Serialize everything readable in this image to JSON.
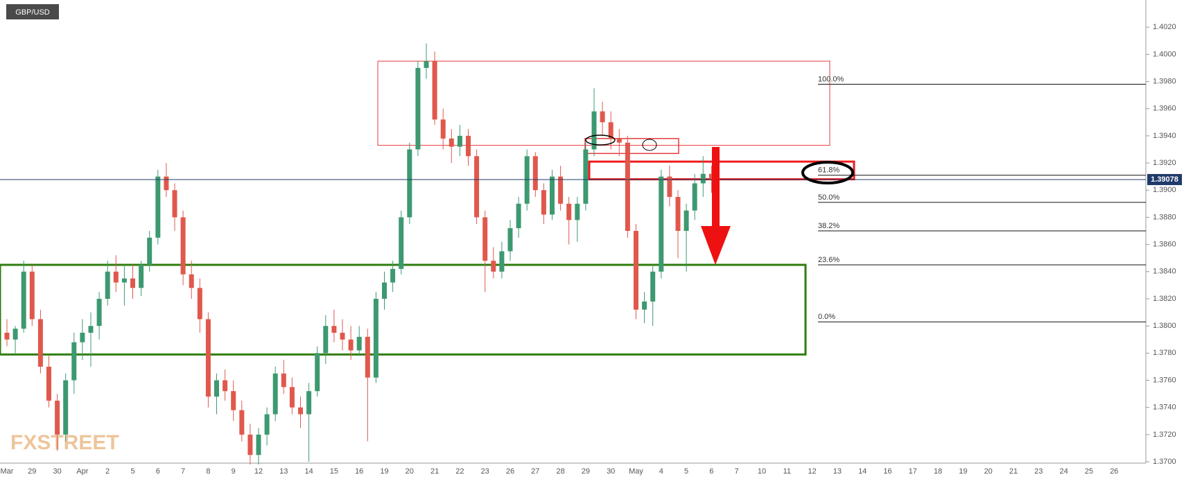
{
  "chart_data": {
    "type": "candlestick",
    "title": "GBP/USD",
    "watermark": "FXSTREET",
    "categories": [
      "Mar",
      null,
      null,
      "29",
      null,
      null,
      "30",
      null,
      null,
      "Apr",
      null,
      null,
      "2",
      null,
      null,
      "5",
      null,
      null,
      "6",
      null,
      null,
      "7",
      null,
      null,
      "8",
      null,
      null,
      "9",
      null,
      null,
      "12",
      null,
      null,
      "13",
      null,
      null,
      "14",
      null,
      null,
      "15",
      null,
      null,
      "16",
      null,
      null,
      "19",
      null,
      null,
      "20",
      null,
      null,
      "21",
      null,
      null,
      "22",
      null,
      null,
      "23",
      null,
      null,
      "26",
      null,
      null,
      "27",
      null,
      null,
      "28",
      null,
      null,
      "29",
      null,
      null,
      "30",
      null,
      null,
      "May",
      null,
      null,
      "4",
      null,
      null,
      "5",
      null,
      null,
      "6",
      null,
      null,
      "7",
      null,
      null,
      "10",
      null,
      null,
      "11",
      null,
      null,
      "12",
      null,
      null,
      "13",
      null,
      null,
      "14",
      null,
      null,
      "16",
      null,
      null,
      "17",
      null,
      null,
      "18",
      null,
      null,
      "19",
      null,
      null,
      "20",
      null,
      null,
      "21",
      null,
      null,
      "23",
      null,
      null,
      "24",
      null,
      null,
      "25",
      null,
      null,
      "26",
      null,
      null
    ],
    "open": [
      1.3795,
      1.379,
      1.3798,
      1.384,
      1.3805,
      1.377,
      1.3745,
      1.372,
      1.376,
      1.3788,
      1.3795,
      1.38,
      1.382,
      1.384,
      1.3832,
      1.3835,
      1.3828,
      1.3845,
      1.3865,
      1.391,
      1.39,
      1.388,
      1.3838,
      1.3828,
      1.3805,
      1.3748,
      1.376,
      1.3752,
      1.3738,
      1.372,
      1.3705,
      1.372,
      1.3735,
      1.3765,
      1.3755,
      1.374,
      1.3735,
      1.3752,
      1.378,
      1.38,
      1.3795,
      1.379,
      1.3782,
      1.3792,
      1.3762,
      1.382,
      1.3832,
      1.3842,
      1.388,
      1.393,
      1.399,
      1.3995,
      1.3952,
      1.3938,
      1.3932,
      1.394,
      1.3925,
      1.388,
      1.3848,
      1.384,
      1.3855,
      1.3872,
      1.389,
      1.3925,
      1.39,
      1.3882,
      1.391,
      1.389,
      1.3878,
      1.389,
      1.393,
      1.3958,
      1.395,
      1.3938,
      1.3935,
      1.387,
      1.3812,
      1.3818,
      1.384,
      1.391,
      1.3895,
      1.387,
      1.3885,
      1.3905,
      1.3912,
      null,
      null,
      null,
      null,
      null,
      null,
      null,
      null,
      null,
      null,
      null,
      null,
      null,
      null,
      null,
      null,
      null,
      null,
      null,
      null,
      null,
      null,
      null,
      null,
      null,
      null,
      null,
      null,
      null,
      null,
      null,
      null,
      null,
      null,
      null,
      null,
      null,
      null,
      null,
      null,
      null,
      null,
      null,
      null,
      null,
      null,
      null,
      null,
      null,
      null
    ],
    "high": [
      1.3805,
      1.38,
      1.3848,
      1.3845,
      1.3812,
      1.3778,
      1.375,
      1.3765,
      1.3795,
      1.3805,
      1.381,
      1.3825,
      1.3848,
      1.3852,
      1.3845,
      1.3845,
      1.3848,
      1.387,
      1.3915,
      1.392,
      1.3905,
      1.3885,
      1.3848,
      1.3835,
      1.381,
      1.3765,
      1.3768,
      1.376,
      1.3745,
      1.3728,
      1.3725,
      1.374,
      1.377,
      1.3775,
      1.3762,
      1.3748,
      1.3758,
      1.3785,
      1.3808,
      1.3812,
      1.3805,
      1.38,
      1.38,
      1.3798,
      1.3825,
      1.384,
      1.3848,
      1.3885,
      1.3935,
      1.3995,
      1.4008,
      1.4002,
      1.396,
      1.3945,
      1.3948,
      1.3945,
      1.393,
      1.3885,
      1.3858,
      1.3862,
      1.3878,
      1.3895,
      1.393,
      1.3928,
      1.3905,
      1.3915,
      1.3918,
      1.3895,
      1.3895,
      1.3935,
      1.3975,
      1.3965,
      1.3958,
      1.3945,
      1.394,
      1.3875,
      1.3825,
      1.3845,
      1.3915,
      1.3918,
      1.39,
      1.389,
      1.3912,
      1.3925,
      1.3918,
      null,
      null,
      null,
      null,
      null,
      null,
      null,
      null,
      null,
      null,
      null,
      null,
      null,
      null,
      null,
      null,
      null,
      null,
      null,
      null,
      null,
      null,
      null,
      null,
      null,
      null,
      null,
      null,
      null,
      null,
      null,
      null,
      null,
      null,
      null,
      null,
      null,
      null,
      null,
      null,
      null,
      null,
      null,
      null,
      null,
      null,
      null,
      null,
      null,
      null
    ],
    "low": [
      1.3785,
      1.378,
      1.3795,
      1.38,
      1.3765,
      1.374,
      1.3708,
      1.3715,
      1.375,
      1.3775,
      1.377,
      1.379,
      1.3815,
      1.3825,
      1.3815,
      1.382,
      1.3822,
      1.384,
      1.386,
      1.3895,
      1.387,
      1.383,
      1.382,
      1.3795,
      1.374,
      1.3735,
      1.3745,
      1.373,
      1.3715,
      1.3698,
      1.3698,
      1.3712,
      1.373,
      1.375,
      1.3735,
      1.3725,
      1.37,
      1.3748,
      1.3772,
      1.3788,
      1.3782,
      1.3775,
      1.3778,
      1.3715,
      1.3758,
      1.3812,
      1.3825,
      1.3838,
      1.3875,
      1.3925,
      1.3982,
      1.3948,
      1.393,
      1.392,
      1.3925,
      1.3918,
      1.3875,
      1.3825,
      1.3835,
      1.3835,
      1.3848,
      1.3865,
      1.3885,
      1.3895,
      1.3875,
      1.3878,
      1.3885,
      1.386,
      1.3862,
      1.3885,
      1.3925,
      1.394,
      1.393,
      1.3925,
      1.3865,
      1.3805,
      1.3802,
      1.38,
      1.3835,
      1.3888,
      1.385,
      1.384,
      1.3878,
      1.3895,
      1.3898,
      null,
      null,
      null,
      null,
      null,
      null,
      null,
      null,
      null,
      null,
      null,
      null,
      null,
      null,
      null,
      null,
      null,
      null,
      null,
      null,
      null,
      null,
      null,
      null,
      null,
      null,
      null,
      null,
      null,
      null,
      null,
      null,
      null,
      null,
      null,
      null,
      null,
      null,
      null,
      null,
      null,
      null,
      null,
      null,
      null,
      null,
      null,
      null,
      null,
      null
    ],
    "close": [
      1.379,
      1.3798,
      1.384,
      1.3805,
      1.377,
      1.3745,
      1.372,
      1.376,
      1.3788,
      1.3795,
      1.38,
      1.382,
      1.384,
      1.3832,
      1.3835,
      1.3828,
      1.3845,
      1.3865,
      1.391,
      1.39,
      1.388,
      1.3838,
      1.3828,
      1.3805,
      1.3748,
      1.376,
      1.3752,
      1.3738,
      1.372,
      1.3705,
      1.372,
      1.3735,
      1.3765,
      1.3755,
      1.374,
      1.3735,
      1.3752,
      1.378,
      1.38,
      1.3795,
      1.379,
      1.3782,
      1.3792,
      1.3762,
      1.382,
      1.3832,
      1.3842,
      1.388,
      1.393,
      1.399,
      1.3995,
      1.3952,
      1.3938,
      1.3932,
      1.394,
      1.3925,
      1.388,
      1.3848,
      1.384,
      1.3855,
      1.3872,
      1.389,
      1.3925,
      1.39,
      1.3882,
      1.391,
      1.389,
      1.3878,
      1.389,
      1.393,
      1.3958,
      1.395,
      1.3938,
      1.3935,
      1.387,
      1.3812,
      1.3818,
      1.384,
      1.391,
      1.3895,
      1.387,
      1.3885,
      1.3905,
      1.3912,
      1.39078,
      null,
      null,
      null,
      null,
      null,
      null,
      null,
      null,
      null,
      null,
      null,
      null,
      null,
      null,
      null,
      null,
      null,
      null,
      null,
      null,
      null,
      null,
      null,
      null,
      null,
      null,
      null,
      null,
      null,
      null,
      null,
      null,
      null,
      null,
      null,
      null,
      null,
      null,
      null,
      null,
      null,
      null,
      null,
      null,
      null,
      null,
      null,
      null,
      null,
      null
    ],
    "up_color": "#3d9970",
    "down_color": "#e0584c",
    "ylim": [
      1.3699,
      1.404
    ],
    "yticks": [
      {
        "value": 1.37,
        "label": "1.3700"
      },
      {
        "value": 1.372,
        "label": "1.3720"
      },
      {
        "value": 1.374,
        "label": "1.3740"
      },
      {
        "value": 1.376,
        "label": "1.3760"
      },
      {
        "value": 1.378,
        "label": "1.3780"
      },
      {
        "value": 1.38,
        "label": "1.3800"
      },
      {
        "value": 1.382,
        "label": "1.3820"
      },
      {
        "value": 1.384,
        "label": "1.3840"
      },
      {
        "value": 1.386,
        "label": "1.3860"
      },
      {
        "value": 1.388,
        "label": "1.3880"
      },
      {
        "value": 1.39,
        "label": "1.3900"
      },
      {
        "value": 1.392,
        "label": "1.3920"
      },
      {
        "value": 1.394,
        "label": "1.3940"
      },
      {
        "value": 1.396,
        "label": "1.3960"
      },
      {
        "value": 1.398,
        "label": "1.3980"
      },
      {
        "value": 1.4,
        "label": "1.4000"
      },
      {
        "value": 1.402,
        "label": "1.4020"
      }
    ],
    "grid": false,
    "last_price": 1.39078,
    "fib_levels": [
      {
        "ratio": 100.0,
        "label": "100.0%",
        "price": 1.3978
      },
      {
        "ratio": 61.8,
        "label": "61.8%",
        "price": 1.3911
      },
      {
        "ratio": 50.0,
        "label": "50.0%",
        "price": 1.3891
      },
      {
        "ratio": 38.2,
        "label": "38.2%",
        "price": 1.387
      },
      {
        "ratio": 23.6,
        "label": "23.6%",
        "price": 1.3845
      },
      {
        "ratio": 0.0,
        "label": "0.0%",
        "price": 1.3803
      }
    ],
    "zones": [
      {
        "top": 1.3995,
        "bottom": 1.3933,
        "color": "#e8393c"
      },
      {
        "top": 1.3938,
        "bottom": 1.3927,
        "color": "#e8393c"
      },
      {
        "top": 1.3921,
        "bottom": 1.3908,
        "color": "#ee1c1c"
      },
      {
        "top": 1.3845,
        "bottom": 1.3779,
        "color": "#2e7d0e"
      }
    ]
  }
}
